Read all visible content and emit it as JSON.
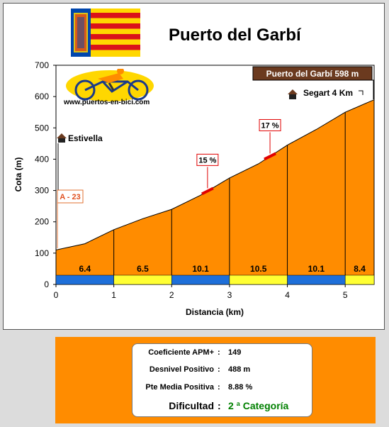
{
  "title": "Puerto del Garbí",
  "website": "www.puertos-en-bici.com",
  "chart_data": {
    "type": "area",
    "xlabel": "Distancia (km)",
    "ylabel": "Cota (m)",
    "xlim": [
      0,
      5.5
    ],
    "ylim": [
      0,
      700
    ],
    "xticks": [
      0,
      1,
      2,
      3,
      4,
      5
    ],
    "yticks": [
      0,
      100,
      200,
      300,
      400,
      500,
      600,
      700
    ],
    "profile": [
      [
        0,
        110
      ],
      [
        0.5,
        130
      ],
      [
        1,
        175
      ],
      [
        1.5,
        210
      ],
      [
        2,
        240
      ],
      [
        2.5,
        285
      ],
      [
        3,
        340
      ],
      [
        3.5,
        385
      ],
      [
        4,
        445
      ],
      [
        4.5,
        495
      ],
      [
        5,
        550
      ],
      [
        5.5,
        590
      ]
    ],
    "segment_grades": [
      6.4,
      6.5,
      10.1,
      10.5,
      10.1,
      8.4
    ],
    "segment_bounds": [
      0,
      1,
      2,
      3,
      4,
      5,
      5.5
    ],
    "segment_colors": [
      "#1e6fd9",
      "#ffff33",
      "#1e6fd9",
      "#ffff33",
      "#1e6fd9",
      "#ffff33"
    ],
    "ramps": [
      {
        "label": "15 %",
        "x": 2.62
      },
      {
        "label": "17 %",
        "x": 3.7
      }
    ],
    "annotations": [
      {
        "label": "Puerto del Garbí 598 m"
      },
      {
        "label": "Segart 4 Km"
      },
      {
        "label": "Estivella"
      },
      {
        "label": "A - 23"
      }
    ],
    "fill_color": "#ff8c00"
  },
  "stats": {
    "apm_label": "Coeficiente APM+",
    "apm_value": "149",
    "desnivel_label": "Desnivel Positivo",
    "desnivel_value": "488 m",
    "pendiente_label": "Pte Media Positiva",
    "pendiente_value": "8.88 %",
    "dificultad_label": "Dificultad",
    "dificultad_value": "2 ª Categoría",
    "colon": ":"
  }
}
